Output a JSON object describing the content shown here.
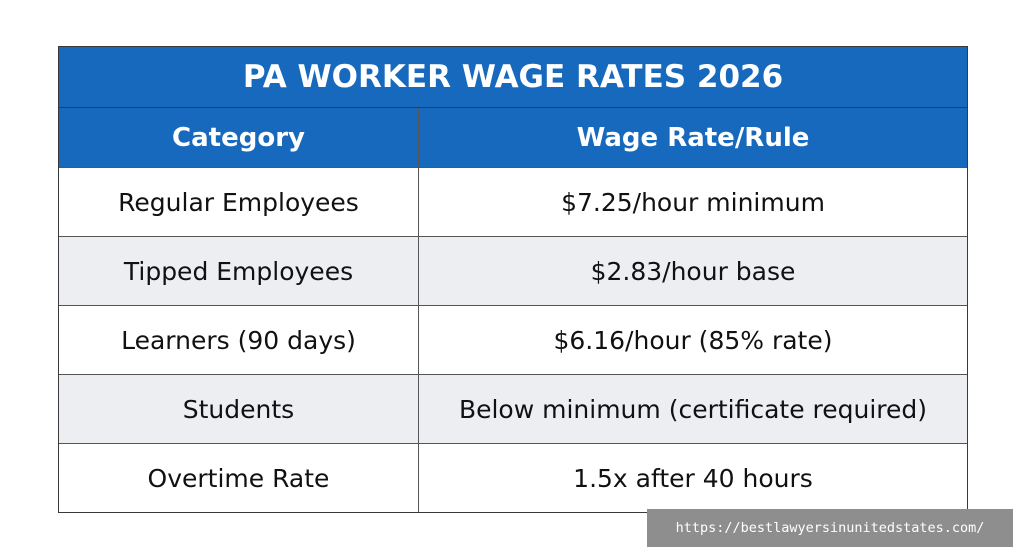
{
  "header": {
    "title": "PA WORKER WAGE RATES 2026"
  },
  "table": {
    "columns": [
      "Category",
      "Wage Rate/Rule"
    ],
    "rows": [
      [
        "Regular Employees",
        "$7.25/hour minimum"
      ],
      [
        "Tipped Employees",
        "$2.83/hour base"
      ],
      [
        "Learners (90 days)",
        "$6.16/hour (85% rate)"
      ],
      [
        "Students",
        "Below minimum (certificate required)"
      ],
      [
        "Overtime Rate",
        "1.5x after 40 hours"
      ]
    ]
  },
  "watermark": "https://bestlawyersinunitedstates.com/"
}
